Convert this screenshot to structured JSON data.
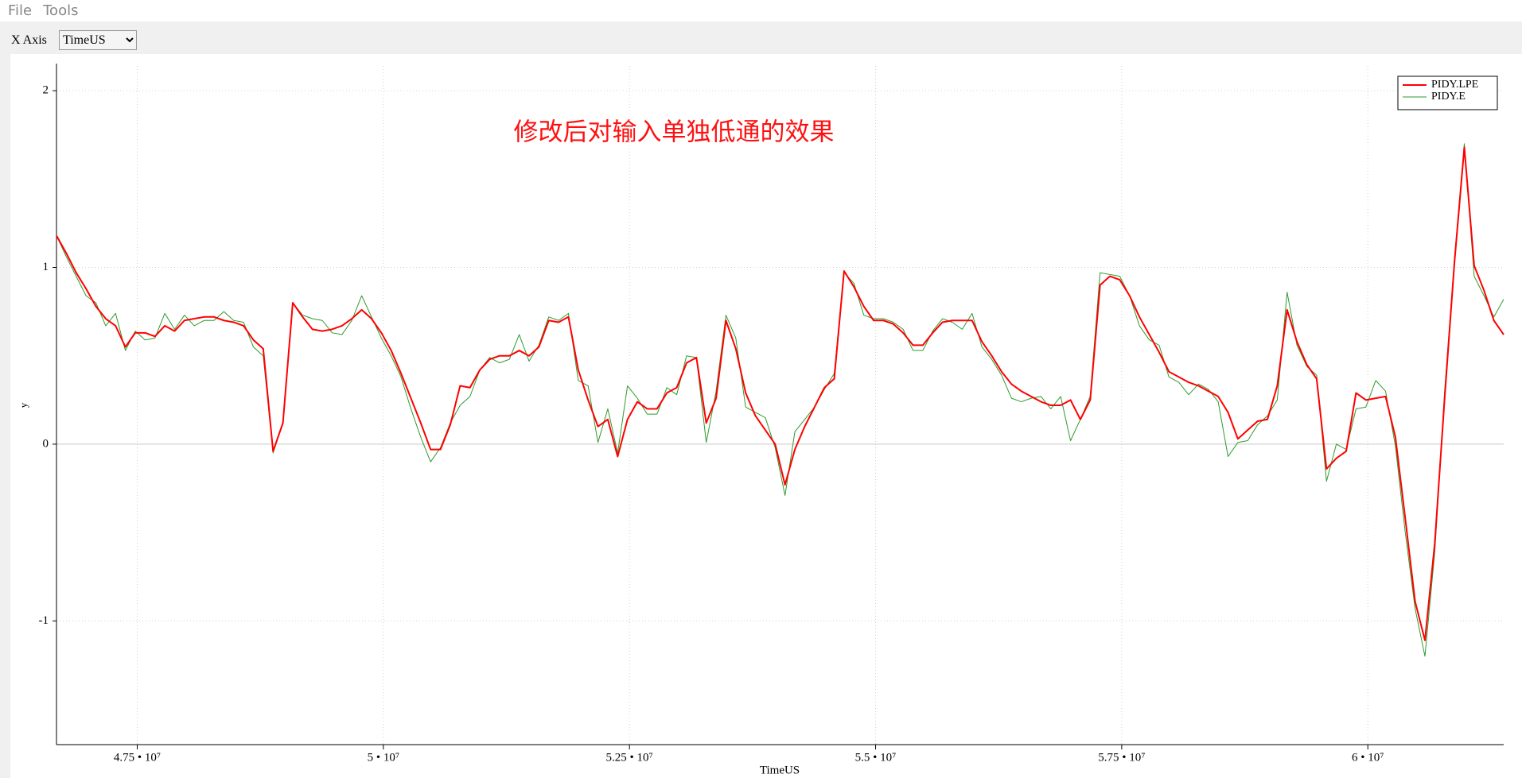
{
  "menu": [
    "File",
    "Tools"
  ],
  "toolbar": {
    "x_axis_label": "X Axis",
    "x_axis_value": "TimeUS"
  },
  "chart_data": {
    "type": "line",
    "title": "修改后对输入单独低通的效果",
    "x_label": "TimeUS",
    "y_label": "y",
    "xlim": [
      46680000,
      61380000
    ],
    "ylim": [
      -1.7,
      2.14
    ],
    "xticks": [
      {
        "value": 47500000,
        "label": "4.75 • 10⁷"
      },
      {
        "value": 50000000,
        "label": "5 • 10⁷"
      },
      {
        "value": 52500000,
        "label": "5.25 • 10⁷"
      },
      {
        "value": 55000000,
        "label": "5.5 • 10⁷"
      },
      {
        "value": 57500000,
        "label": "5.75 • 10⁷"
      },
      {
        "value": 60000000,
        "label": "6 • 10⁷"
      }
    ],
    "yticks": [
      -1,
      0,
      1,
      2
    ],
    "grid": true,
    "legend": "upper right",
    "x": [
      46680000,
      46780000,
      46880000,
      46980000,
      47080000,
      47180000,
      47280000,
      47380000,
      47480000,
      47580000,
      47680000,
      47780000,
      47880000,
      47980000,
      48080000,
      48180000,
      48280000,
      48380000,
      48480000,
      48580000,
      48680000,
      48780000,
      48880000,
      48980000,
      49080000,
      49180000,
      49280000,
      49380000,
      49480000,
      49580000,
      49680000,
      49780000,
      49880000,
      49980000,
      50080000,
      50180000,
      50280000,
      50380000,
      50480000,
      50580000,
      50680000,
      50780000,
      50880000,
      50980000,
      51080000,
      51180000,
      51280000,
      51380000,
      51480000,
      51580000,
      51680000,
      51780000,
      51880000,
      51980000,
      52080000,
      52180000,
      52280000,
      52380000,
      52480000,
      52580000,
      52680000,
      52780000,
      52880000,
      52980000,
      53080000,
      53180000,
      53280000,
      53380000,
      53480000,
      53580000,
      53680000,
      53780000,
      53880000,
      53980000,
      54080000,
      54180000,
      54280000,
      54380000,
      54480000,
      54580000,
      54680000,
      54780000,
      54880000,
      54980000,
      55080000,
      55180000,
      55280000,
      55380000,
      55480000,
      55580000,
      55680000,
      55780000,
      55880000,
      55980000,
      56080000,
      56180000,
      56280000,
      56380000,
      56480000,
      56580000,
      56680000,
      56780000,
      56880000,
      56980000,
      57080000,
      57180000,
      57280000,
      57380000,
      57480000,
      57580000,
      57680000,
      57780000,
      57880000,
      57980000,
      58080000,
      58180000,
      58280000,
      58380000,
      58480000,
      58580000,
      58680000,
      58780000,
      58880000,
      58980000,
      59080000,
      59180000,
      59280000,
      59380000,
      59480000,
      59580000,
      59680000,
      59780000,
      59880000,
      59980000,
      60080000,
      60180000,
      60280000,
      60380000,
      60480000,
      60580000,
      60680000,
      60780000,
      60880000,
      60980000,
      61080000,
      61180000,
      61280000,
      61380000
    ],
    "series": [
      {
        "name": "PIDY.LPE",
        "color": "#ff0000",
        "width": 2,
        "values": [
          1.18,
          1.08,
          0.97,
          0.88,
          0.78,
          0.71,
          0.67,
          0.55,
          0.63,
          0.63,
          0.61,
          0.67,
          0.64,
          0.7,
          0.71,
          0.72,
          0.72,
          0.7,
          0.69,
          0.67,
          0.59,
          0.54,
          -0.04,
          0.12,
          0.8,
          0.72,
          0.65,
          0.64,
          0.65,
          0.67,
          0.71,
          0.76,
          0.71,
          0.63,
          0.53,
          0.4,
          0.26,
          0.12,
          -0.03,
          -0.03,
          0.11,
          0.33,
          0.32,
          0.42,
          0.48,
          0.5,
          0.5,
          0.53,
          0.5,
          0.55,
          0.7,
          0.69,
          0.72,
          0.42,
          0.25,
          0.1,
          0.14,
          -0.07,
          0.14,
          0.24,
          0.2,
          0.2,
          0.29,
          0.32,
          0.46,
          0.49,
          0.12,
          0.26,
          0.7,
          0.54,
          0.29,
          0.16,
          0.08,
          0.0,
          -0.23,
          -0.03,
          0.1,
          0.21,
          0.32,
          0.37,
          0.98,
          0.89,
          0.78,
          0.7,
          0.7,
          0.68,
          0.63,
          0.56,
          0.56,
          0.63,
          0.69,
          0.7,
          0.7,
          0.7,
          0.58,
          0.5,
          0.41,
          0.34,
          0.3,
          0.27,
          0.24,
          0.22,
          0.22,
          0.25,
          0.14,
          0.25,
          0.9,
          0.95,
          0.93,
          0.84,
          0.72,
          0.62,
          0.52,
          0.41,
          0.38,
          0.35,
          0.33,
          0.3,
          0.27,
          0.18,
          0.03,
          0.08,
          0.13,
          0.14,
          0.33,
          0.76,
          0.58,
          0.45,
          0.37,
          -0.14,
          -0.08,
          -0.04,
          0.29,
          0.25,
          0.26,
          0.27,
          0.04,
          -0.42,
          -0.89,
          -1.11,
          -0.56,
          0.26,
          1.03,
          1.68,
          1.01,
          0.87,
          0.7,
          0.62
        ]
      },
      {
        "name": "PIDY.E",
        "color": "#2e9a2e",
        "width": 1,
        "values": [
          1.18,
          1.06,
          0.95,
          0.84,
          0.8,
          0.67,
          0.74,
          0.53,
          0.64,
          0.59,
          0.6,
          0.74,
          0.65,
          0.73,
          0.67,
          0.7,
          0.7,
          0.75,
          0.7,
          0.69,
          0.55,
          0.5,
          -0.05,
          0.12,
          0.8,
          0.73,
          0.71,
          0.7,
          0.63,
          0.62,
          0.7,
          0.84,
          0.72,
          0.6,
          0.5,
          0.38,
          0.2,
          0.04,
          -0.1,
          -0.02,
          0.12,
          0.22,
          0.27,
          0.42,
          0.49,
          0.46,
          0.48,
          0.62,
          0.47,
          0.56,
          0.72,
          0.7,
          0.74,
          0.36,
          0.33,
          0.01,
          0.2,
          -0.05,
          0.33,
          0.26,
          0.17,
          0.17,
          0.32,
          0.28,
          0.5,
          0.49,
          0.01,
          0.3,
          0.73,
          0.6,
          0.21,
          0.18,
          0.15,
          -0.02,
          -0.29,
          0.07,
          0.14,
          0.21,
          0.31,
          0.4,
          0.97,
          0.91,
          0.73,
          0.71,
          0.71,
          0.69,
          0.65,
          0.53,
          0.53,
          0.64,
          0.71,
          0.69,
          0.65,
          0.74,
          0.55,
          0.48,
          0.39,
          0.26,
          0.24,
          0.26,
          0.27,
          0.2,
          0.27,
          0.02,
          0.14,
          0.27,
          0.97,
          0.96,
          0.95,
          0.84,
          0.67,
          0.59,
          0.56,
          0.38,
          0.35,
          0.28,
          0.34,
          0.31,
          0.24,
          -0.07,
          0.01,
          0.02,
          0.11,
          0.16,
          0.25,
          0.86,
          0.56,
          0.44,
          0.39,
          -0.21,
          0.0,
          -0.03,
          0.2,
          0.21,
          0.36,
          0.3,
          -0.01,
          -0.5,
          -0.93,
          -1.2,
          -0.61,
          0.3,
          1.05,
          1.7,
          0.95,
          0.84,
          0.72,
          0.82
        ]
      }
    ]
  }
}
